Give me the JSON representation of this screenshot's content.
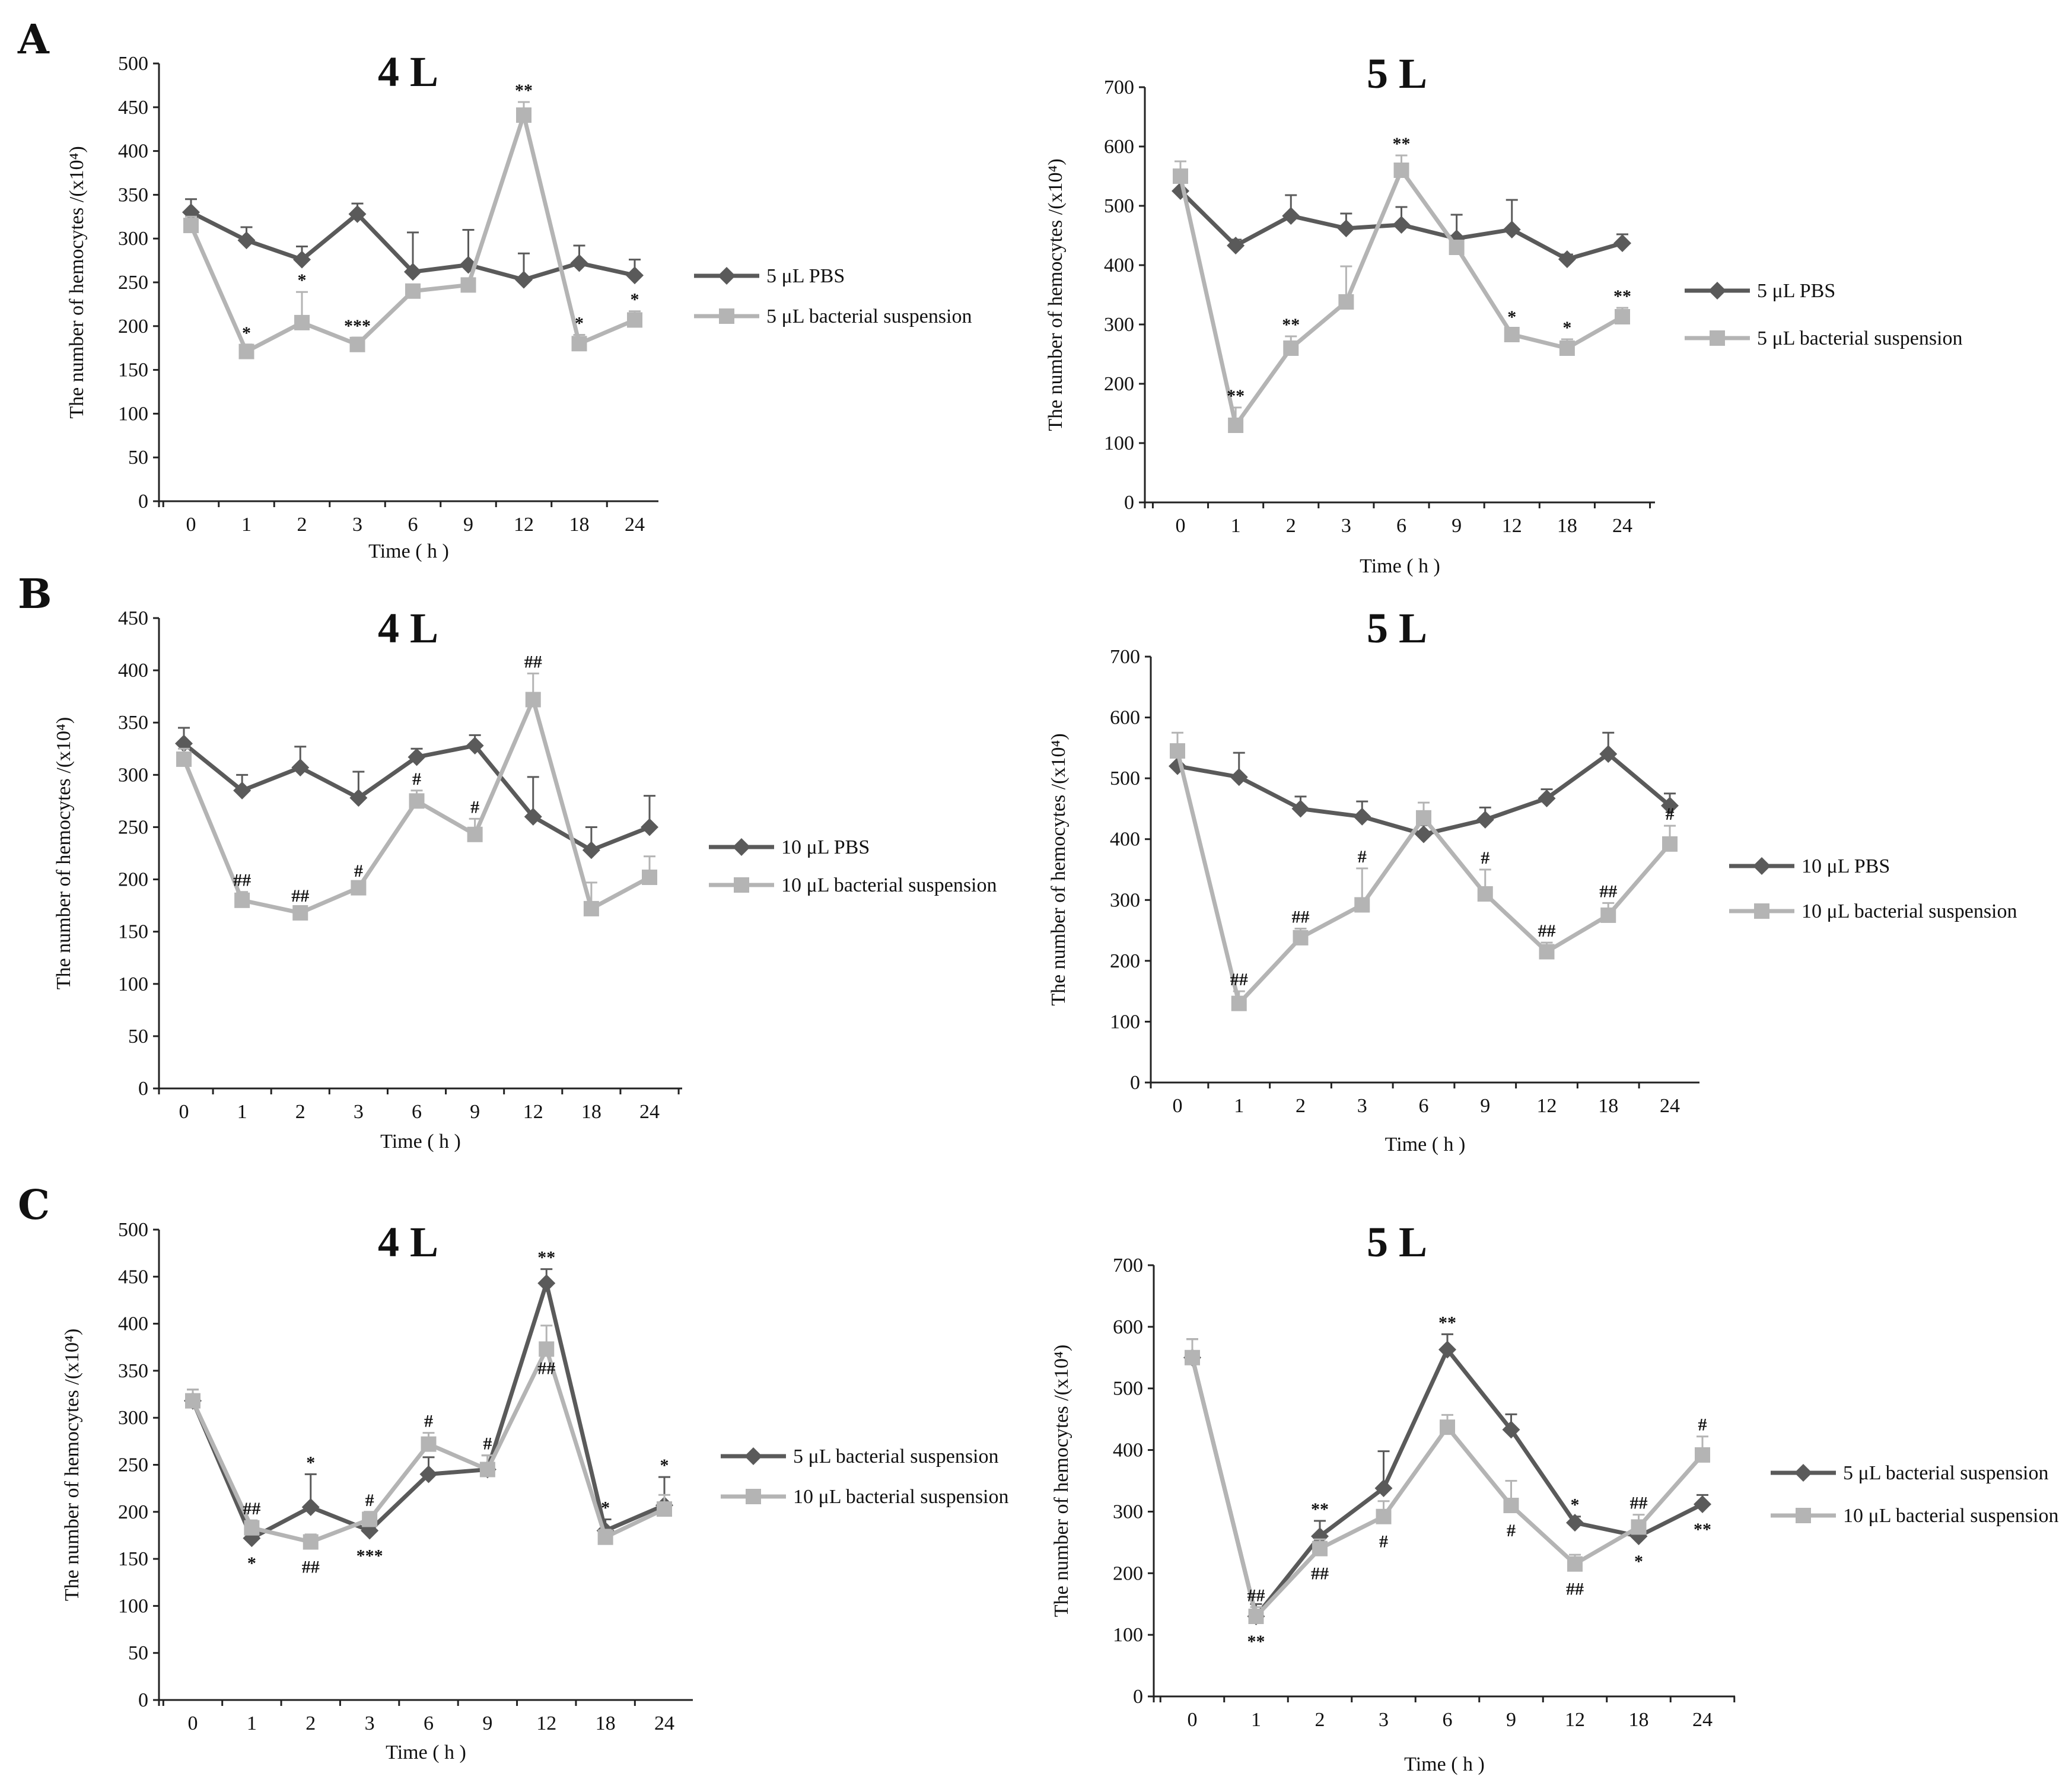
{
  "panel_letters": [
    "A",
    "B",
    "C"
  ],
  "colors": {
    "dark_series": "#5a5a5a",
    "light_series": "#b4b4b4",
    "axis": "#222222",
    "text": "#111111"
  },
  "chart_data": [
    {
      "panel": "A",
      "type": "line",
      "title": "4 L",
      "xlabel": "Time ( h )",
      "ylabel": "The number of hemocytes /(x10⁴)",
      "categories": [
        "0",
        "1",
        "2",
        "3",
        "6",
        "9",
        "12",
        "18",
        "24"
      ],
      "ylim": [
        0,
        500
      ],
      "yticks": [
        0,
        50,
        100,
        150,
        200,
        250,
        300,
        350,
        400,
        450,
        500
      ],
      "legend_position": "right",
      "series": [
        {
          "name": "5 μL PBS",
          "style": "dark",
          "marker": "diamond",
          "values": [
            330,
            298,
            276,
            328,
            262,
            270,
            253,
            272,
            258
          ],
          "errors": [
            15,
            15,
            15,
            12,
            45,
            40,
            30,
            20,
            18
          ]
        },
        {
          "name": "5 μL bacterial suspension",
          "style": "light",
          "marker": "square",
          "values": [
            315,
            171,
            204,
            179,
            240,
            247,
            441,
            180,
            207
          ],
          "errors": [
            10,
            8,
            35,
            8,
            5,
            5,
            15,
            10,
            10
          ]
        }
      ],
      "annotations": [
        {
          "text": "*",
          "series": 1,
          "index": 1,
          "pos": "above"
        },
        {
          "text": "*",
          "series": 1,
          "index": 2,
          "pos": "above"
        },
        {
          "text": "***",
          "series": 1,
          "index": 3,
          "pos": "above"
        },
        {
          "text": "**",
          "series": 1,
          "index": 6,
          "pos": "above"
        },
        {
          "text": "*",
          "series": 1,
          "index": 7,
          "pos": "above"
        },
        {
          "text": "*",
          "series": 1,
          "index": 8,
          "pos": "above"
        }
      ]
    },
    {
      "panel": "A",
      "type": "line",
      "title": "5 L",
      "xlabel": "Time ( h )",
      "ylabel": "The number of hemocytes /(x10⁴)",
      "categories": [
        "0",
        "1",
        "2",
        "3",
        "6",
        "9",
        "12",
        "18",
        "24"
      ],
      "ylim": [
        0,
        700
      ],
      "yticks": [
        0,
        100,
        200,
        300,
        400,
        500,
        600,
        700
      ],
      "legend_position": "right",
      "series": [
        {
          "name": "5 μL PBS",
          "style": "dark",
          "marker": "diamond",
          "values": [
            525,
            433,
            483,
            462,
            468,
            445,
            460,
            410,
            437
          ],
          "errors": [
            25,
            10,
            35,
            25,
            30,
            40,
            50,
            8,
            15
          ]
        },
        {
          "name": "5 μL bacterial suspension",
          "style": "light",
          "marker": "square",
          "values": [
            550,
            130,
            260,
            338,
            560,
            430,
            283,
            260,
            313
          ],
          "errors": [
            25,
            30,
            20,
            60,
            25,
            10,
            10,
            15,
            15
          ]
        }
      ],
      "annotations": [
        {
          "text": "**",
          "series": 1,
          "index": 1,
          "pos": "above"
        },
        {
          "text": "**",
          "series": 1,
          "index": 2,
          "pos": "above"
        },
        {
          "text": "**",
          "series": 1,
          "index": 4,
          "pos": "above"
        },
        {
          "text": "*",
          "series": 1,
          "index": 6,
          "pos": "above"
        },
        {
          "text": "*",
          "series": 1,
          "index": 7,
          "pos": "above"
        },
        {
          "text": "**",
          "series": 1,
          "index": 8,
          "pos": "above"
        }
      ]
    },
    {
      "panel": "B",
      "type": "line",
      "title": "4 L",
      "xlabel": "Time ( h )",
      "ylabel": "The number of hemocytes /(x10⁴)",
      "categories": [
        "0",
        "1",
        "2",
        "3",
        "6",
        "9",
        "12",
        "18",
        "24"
      ],
      "ylim": [
        0,
        450
      ],
      "yticks": [
        0,
        50,
        100,
        150,
        200,
        250,
        300,
        350,
        400,
        450
      ],
      "legend_position": "right",
      "series": [
        {
          "name": "10 μL PBS",
          "style": "dark",
          "marker": "diamond",
          "values": [
            330,
            285,
            307,
            278,
            317,
            328,
            260,
            228,
            250
          ],
          "errors": [
            15,
            15,
            20,
            25,
            8,
            10,
            38,
            22,
            30
          ]
        },
        {
          "name": "10 μL bacterial suspension",
          "style": "light",
          "marker": "square",
          "values": [
            315,
            180,
            168,
            192,
            275,
            243,
            372,
            172,
            202
          ],
          "errors": [
            10,
            8,
            5,
            5,
            10,
            15,
            25,
            25,
            20
          ]
        }
      ],
      "annotations": [
        {
          "text": "##",
          "series": 1,
          "index": 1,
          "pos": "above"
        },
        {
          "text": "##",
          "series": 1,
          "index": 2,
          "pos": "above"
        },
        {
          "text": "#",
          "series": 1,
          "index": 3,
          "pos": "above"
        },
        {
          "text": "#",
          "series": 1,
          "index": 4,
          "pos": "above"
        },
        {
          "text": "#",
          "series": 1,
          "index": 5,
          "pos": "above"
        },
        {
          "text": "##",
          "series": 1,
          "index": 6,
          "pos": "above"
        }
      ]
    },
    {
      "panel": "B",
      "type": "line",
      "title": "5 L",
      "xlabel": "Time ( h )",
      "ylabel": "The number of hemocytes /(x10⁴)",
      "categories": [
        "0",
        "1",
        "2",
        "3",
        "6",
        "9",
        "12",
        "18",
        "24"
      ],
      "ylim": [
        0,
        700
      ],
      "yticks": [
        0,
        100,
        200,
        300,
        400,
        500,
        600,
        700
      ],
      "legend_position": "right",
      "series": [
        {
          "name": "10 μL PBS",
          "style": "dark",
          "marker": "diamond",
          "values": [
            520,
            502,
            450,
            437,
            408,
            432,
            467,
            540,
            455
          ],
          "errors": [
            15,
            40,
            20,
            25,
            15,
            20,
            15,
            35,
            20
          ]
        },
        {
          "name": "10 μL bacterial suspension",
          "style": "light",
          "marker": "square",
          "values": [
            545,
            130,
            238,
            292,
            435,
            310,
            215,
            275,
            392
          ],
          "errors": [
            30,
            20,
            15,
            60,
            25,
            40,
            15,
            20,
            30
          ]
        }
      ],
      "annotations": [
        {
          "text": "##",
          "series": 1,
          "index": 1,
          "pos": "above"
        },
        {
          "text": "##",
          "series": 1,
          "index": 2,
          "pos": "above"
        },
        {
          "text": "#",
          "series": 1,
          "index": 3,
          "pos": "above"
        },
        {
          "text": "#",
          "series": 1,
          "index": 5,
          "pos": "above"
        },
        {
          "text": "##",
          "series": 1,
          "index": 6,
          "pos": "above"
        },
        {
          "text": "##",
          "series": 1,
          "index": 7,
          "pos": "above"
        },
        {
          "text": "#",
          "series": 1,
          "index": 8,
          "pos": "above"
        }
      ]
    },
    {
      "panel": "C",
      "type": "line",
      "title": "4 L",
      "xlabel": "Time ( h )",
      "ylabel": "The number of hemocytes /(x10⁴)",
      "categories": [
        "0",
        "1",
        "2",
        "3",
        "6",
        "9",
        "12",
        "18",
        "24"
      ],
      "ylim": [
        0,
        500
      ],
      "yticks": [
        0,
        50,
        100,
        150,
        200,
        250,
        300,
        350,
        400,
        450,
        500
      ],
      "legend_position": "right",
      "series": [
        {
          "name": "5 μL bacterial suspension",
          "style": "dark",
          "marker": "diamond",
          "values": [
            318,
            172,
            205,
            180,
            240,
            245,
            443,
            180,
            207
          ],
          "errors": [
            12,
            10,
            35,
            10,
            18,
            15,
            15,
            12,
            30
          ]
        },
        {
          "name": "10 μL bacterial suspension",
          "style": "light",
          "marker": "square",
          "values": [
            318,
            183,
            168,
            192,
            272,
            245,
            373,
            173,
            203
          ],
          "errors": [
            12,
            8,
            8,
            8,
            12,
            15,
            25,
            8,
            15
          ]
        }
      ],
      "annotations": [
        {
          "text": "##",
          "series": 1,
          "index": 1,
          "pos": "above"
        },
        {
          "text": "*",
          "series": 0,
          "index": 1,
          "pos": "below"
        },
        {
          "text": "*",
          "series": 0,
          "index": 2,
          "pos": "above"
        },
        {
          "text": "##",
          "series": 1,
          "index": 2,
          "pos": "below"
        },
        {
          "text": "#",
          "series": 1,
          "index": 3,
          "pos": "above"
        },
        {
          "text": "***",
          "series": 0,
          "index": 3,
          "pos": "below"
        },
        {
          "text": "#",
          "series": 1,
          "index": 4,
          "pos": "above"
        },
        {
          "text": "#",
          "series": 1,
          "index": 5,
          "pos": "above"
        },
        {
          "text": "**",
          "series": 0,
          "index": 6,
          "pos": "above"
        },
        {
          "text": "##",
          "series": 1,
          "index": 6,
          "pos": "inside"
        },
        {
          "text": "*",
          "series": 0,
          "index": 7,
          "pos": "above"
        },
        {
          "text": "*",
          "series": 0,
          "index": 8,
          "pos": "above"
        }
      ]
    },
    {
      "panel": "C",
      "type": "line",
      "title": "5 L",
      "xlabel": "Time ( h )",
      "ylabel": "The number of hemocytes /(x10⁴)",
      "categories": [
        "0",
        "1",
        "2",
        "3",
        "6",
        "9",
        "12",
        "18",
        "24"
      ],
      "ylim": [
        0,
        700
      ],
      "yticks": [
        0,
        100,
        200,
        300,
        400,
        500,
        600,
        700
      ],
      "legend_position": "right",
      "series": [
        {
          "name": "5 μL bacterial suspension",
          "style": "dark",
          "marker": "diamond",
          "values": [
            550,
            130,
            260,
            338,
            563,
            433,
            282,
            260,
            312
          ],
          "errors": [
            30,
            20,
            25,
            60,
            25,
            25,
            10,
            25,
            15
          ]
        },
        {
          "name": "10 μL bacterial suspension",
          "style": "light",
          "marker": "square",
          "values": [
            550,
            130,
            240,
            292,
            437,
            310,
            215,
            275,
            392
          ],
          "errors": [
            30,
            15,
            15,
            25,
            20,
            40,
            15,
            20,
            30
          ]
        }
      ],
      "annotations": [
        {
          "text": "##",
          "series": 1,
          "index": 1,
          "pos": "above"
        },
        {
          "text": "**",
          "series": 0,
          "index": 1,
          "pos": "below"
        },
        {
          "text": "**",
          "series": 0,
          "index": 2,
          "pos": "above"
        },
        {
          "text": "##",
          "series": 1,
          "index": 2,
          "pos": "below"
        },
        {
          "text": "#",
          "series": 1,
          "index": 3,
          "pos": "below"
        },
        {
          "text": "**",
          "series": 0,
          "index": 4,
          "pos": "above"
        },
        {
          "text": "#",
          "series": 1,
          "index": 5,
          "pos": "below"
        },
        {
          "text": "*",
          "series": 0,
          "index": 6,
          "pos": "above"
        },
        {
          "text": "##",
          "series": 1,
          "index": 6,
          "pos": "below"
        },
        {
          "text": "##",
          "series": 1,
          "index": 7,
          "pos": "above"
        },
        {
          "text": "*",
          "series": 0,
          "index": 7,
          "pos": "below"
        },
        {
          "text": "#",
          "series": 1,
          "index": 8,
          "pos": "above"
        },
        {
          "text": "**",
          "series": 0,
          "index": 8,
          "pos": "below"
        }
      ]
    }
  ]
}
